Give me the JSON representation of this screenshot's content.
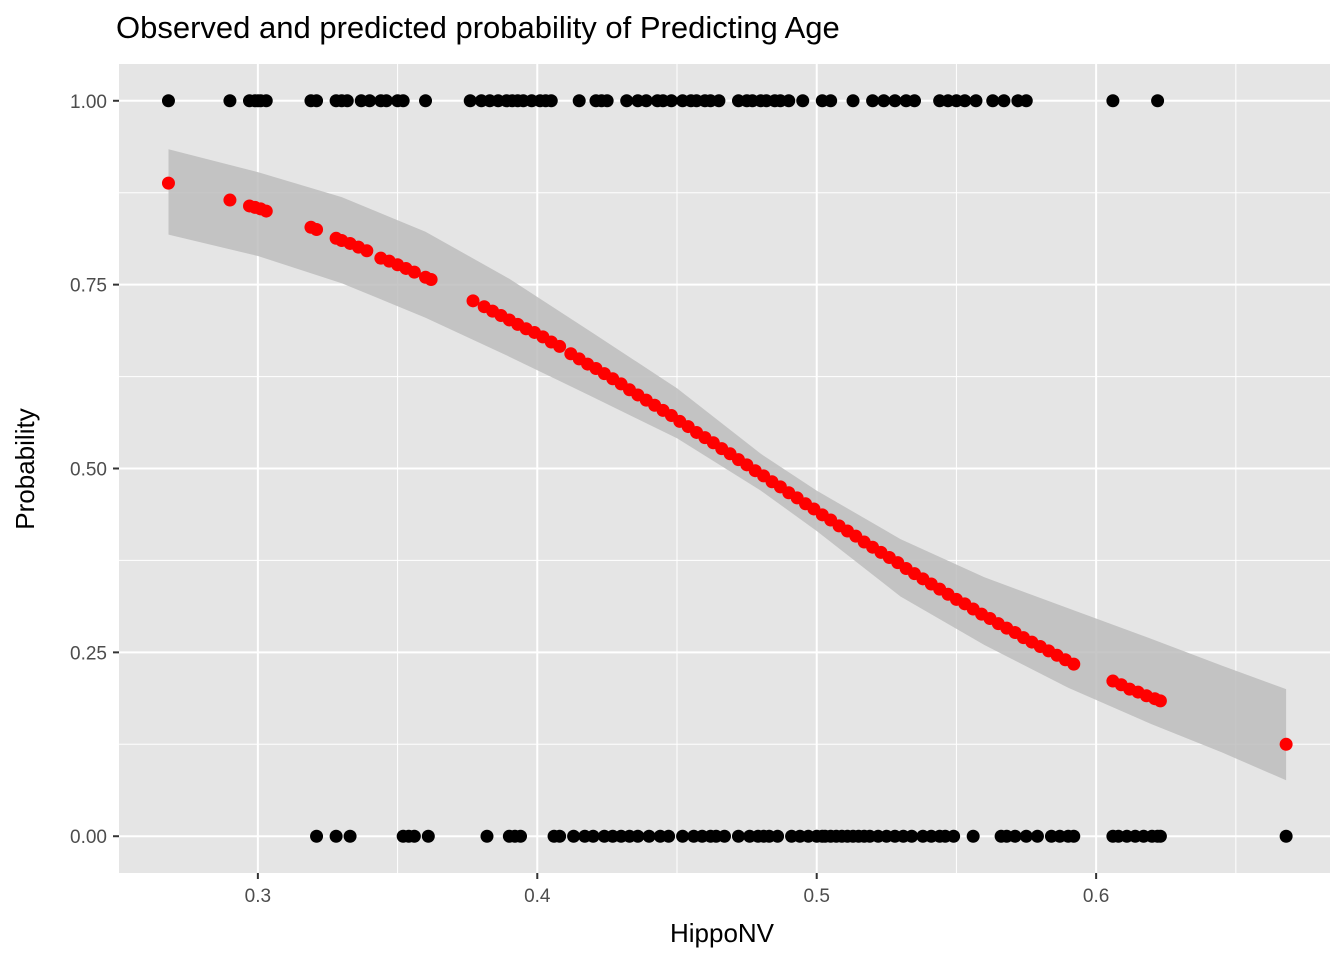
{
  "chart_data": {
    "type": "scatter",
    "title": "Observed and predicted probability of Predicting Age",
    "xlabel": "HippoNV",
    "ylabel": "Probability",
    "xlim": [
      0.2503,
      0.6837
    ],
    "ylim": [
      -0.05,
      1.05
    ],
    "x_ticks": [
      0.3,
      0.4,
      0.5,
      0.6
    ],
    "x_tick_labels": [
      "0.3",
      "0.4",
      "0.5",
      "0.6"
    ],
    "y_ticks": [
      0.0,
      0.25,
      0.5,
      0.75,
      1.0
    ],
    "y_tick_labels": [
      "0.00",
      "0.25",
      "0.50",
      "0.75",
      "1.00"
    ],
    "grid": true,
    "colors": {
      "panel": "#e5e5e5",
      "grid": "#ffffff",
      "observed": "#000000",
      "predicted": "#ff0000",
      "ribbon": "#bdbdbd"
    },
    "observed_y1_x": [
      0.268,
      0.29,
      0.297,
      0.299,
      0.3,
      0.301,
      0.303,
      0.319,
      0.321,
      0.328,
      0.33,
      0.332,
      0.337,
      0.34,
      0.344,
      0.346,
      0.35,
      0.352,
      0.36,
      0.376,
      0.38,
      0.383,
      0.386,
      0.389,
      0.391,
      0.393,
      0.395,
      0.398,
      0.401,
      0.403,
      0.405,
      0.415,
      0.421,
      0.423,
      0.425,
      0.432,
      0.436,
      0.439,
      0.443,
      0.445,
      0.448,
      0.452,
      0.455,
      0.457,
      0.46,
      0.462,
      0.465,
      0.472,
      0.475,
      0.477,
      0.48,
      0.482,
      0.485,
      0.487,
      0.49,
      0.495,
      0.502,
      0.505,
      0.513,
      0.52,
      0.524,
      0.528,
      0.532,
      0.535,
      0.544,
      0.547,
      0.55,
      0.553,
      0.557,
      0.563,
      0.567,
      0.572,
      0.575,
      0.606,
      0.622
    ],
    "observed_y0_x": [
      0.321,
      0.328,
      0.333,
      0.352,
      0.354,
      0.356,
      0.361,
      0.382,
      0.39,
      0.392,
      0.394,
      0.406,
      0.408,
      0.413,
      0.417,
      0.42,
      0.424,
      0.427,
      0.43,
      0.433,
      0.436,
      0.44,
      0.444,
      0.447,
      0.452,
      0.456,
      0.459,
      0.462,
      0.464,
      0.467,
      0.472,
      0.476,
      0.479,
      0.481,
      0.483,
      0.486,
      0.491,
      0.494,
      0.497,
      0.5,
      0.502,
      0.503,
      0.505,
      0.507,
      0.509,
      0.511,
      0.513,
      0.515,
      0.517,
      0.519,
      0.522,
      0.525,
      0.528,
      0.531,
      0.534,
      0.538,
      0.541,
      0.544,
      0.546,
      0.549,
      0.556,
      0.566,
      0.568,
      0.571,
      0.575,
      0.579,
      0.584,
      0.587,
      0.59,
      0.592,
      0.606,
      0.608,
      0.611,
      0.614,
      0.617,
      0.62,
      0.622,
      0.623,
      0.668
    ],
    "predicted": [
      [
        0.268,
        0.888
      ],
      [
        0.29,
        0.865
      ],
      [
        0.297,
        0.857
      ],
      [
        0.299,
        0.855
      ],
      [
        0.301,
        0.853
      ],
      [
        0.303,
        0.85
      ],
      [
        0.319,
        0.828
      ],
      [
        0.321,
        0.825
      ],
      [
        0.328,
        0.813
      ],
      [
        0.33,
        0.81
      ],
      [
        0.333,
        0.806
      ],
      [
        0.336,
        0.801
      ],
      [
        0.339,
        0.796
      ],
      [
        0.344,
        0.786
      ],
      [
        0.347,
        0.782
      ],
      [
        0.35,
        0.777
      ],
      [
        0.353,
        0.772
      ],
      [
        0.356,
        0.767
      ],
      [
        0.36,
        0.76
      ],
      [
        0.362,
        0.757
      ],
      [
        0.377,
        0.728
      ],
      [
        0.381,
        0.72
      ],
      [
        0.384,
        0.714
      ],
      [
        0.387,
        0.708
      ],
      [
        0.39,
        0.702
      ],
      [
        0.393,
        0.696
      ],
      [
        0.396,
        0.69
      ],
      [
        0.399,
        0.685
      ],
      [
        0.402,
        0.679
      ],
      [
        0.405,
        0.672
      ],
      [
        0.408,
        0.666
      ],
      [
        0.412,
        0.656
      ],
      [
        0.415,
        0.649
      ],
      [
        0.418,
        0.642
      ],
      [
        0.421,
        0.636
      ],
      [
        0.424,
        0.629
      ],
      [
        0.427,
        0.622
      ],
      [
        0.43,
        0.615
      ],
      [
        0.433,
        0.607
      ],
      [
        0.436,
        0.6
      ],
      [
        0.439,
        0.593
      ],
      [
        0.442,
        0.586
      ],
      [
        0.445,
        0.579
      ],
      [
        0.448,
        0.572
      ],
      [
        0.451,
        0.564
      ],
      [
        0.454,
        0.557
      ],
      [
        0.457,
        0.549
      ],
      [
        0.46,
        0.542
      ],
      [
        0.463,
        0.535
      ],
      [
        0.466,
        0.527
      ],
      [
        0.469,
        0.52
      ],
      [
        0.472,
        0.512
      ],
      [
        0.475,
        0.505
      ],
      [
        0.478,
        0.497
      ],
      [
        0.481,
        0.49
      ],
      [
        0.484,
        0.482
      ],
      [
        0.487,
        0.475
      ],
      [
        0.49,
        0.467
      ],
      [
        0.493,
        0.46
      ],
      [
        0.496,
        0.452
      ],
      [
        0.499,
        0.445
      ],
      [
        0.502,
        0.437
      ],
      [
        0.505,
        0.43
      ],
      [
        0.508,
        0.422
      ],
      [
        0.511,
        0.415
      ],
      [
        0.514,
        0.408
      ],
      [
        0.517,
        0.4
      ],
      [
        0.52,
        0.393
      ],
      [
        0.523,
        0.386
      ],
      [
        0.526,
        0.379
      ],
      [
        0.529,
        0.372
      ],
      [
        0.532,
        0.364
      ],
      [
        0.535,
        0.357
      ],
      [
        0.538,
        0.35
      ],
      [
        0.541,
        0.343
      ],
      [
        0.544,
        0.336
      ],
      [
        0.547,
        0.329
      ],
      [
        0.55,
        0.322
      ],
      [
        0.553,
        0.316
      ],
      [
        0.556,
        0.309
      ],
      [
        0.559,
        0.302
      ],
      [
        0.562,
        0.296
      ],
      [
        0.565,
        0.289
      ],
      [
        0.568,
        0.283
      ],
      [
        0.571,
        0.277
      ],
      [
        0.574,
        0.27
      ],
      [
        0.577,
        0.264
      ],
      [
        0.58,
        0.258
      ],
      [
        0.583,
        0.252
      ],
      [
        0.586,
        0.246
      ],
      [
        0.589,
        0.24
      ],
      [
        0.592,
        0.234
      ],
      [
        0.606,
        0.211
      ],
      [
        0.609,
        0.206
      ],
      [
        0.612,
        0.2
      ],
      [
        0.615,
        0.196
      ],
      [
        0.618,
        0.191
      ],
      [
        0.621,
        0.187
      ],
      [
        0.623,
        0.184
      ],
      [
        0.668,
        0.125
      ]
    ],
    "ribbon": [
      [
        0.268,
        0.818,
        0.934
      ],
      [
        0.3,
        0.789,
        0.903
      ],
      [
        0.33,
        0.752,
        0.869
      ],
      [
        0.36,
        0.705,
        0.822
      ],
      [
        0.39,
        0.652,
        0.758
      ],
      [
        0.42,
        0.597,
        0.684
      ],
      [
        0.45,
        0.541,
        0.609
      ],
      [
        0.48,
        0.47,
        0.52
      ],
      [
        0.5,
        0.415,
        0.47
      ],
      [
        0.53,
        0.326,
        0.404
      ],
      [
        0.56,
        0.26,
        0.352
      ],
      [
        0.59,
        0.202,
        0.31
      ],
      [
        0.62,
        0.152,
        0.268
      ],
      [
        0.645,
        0.114,
        0.232
      ],
      [
        0.668,
        0.076,
        0.2
      ]
    ]
  }
}
